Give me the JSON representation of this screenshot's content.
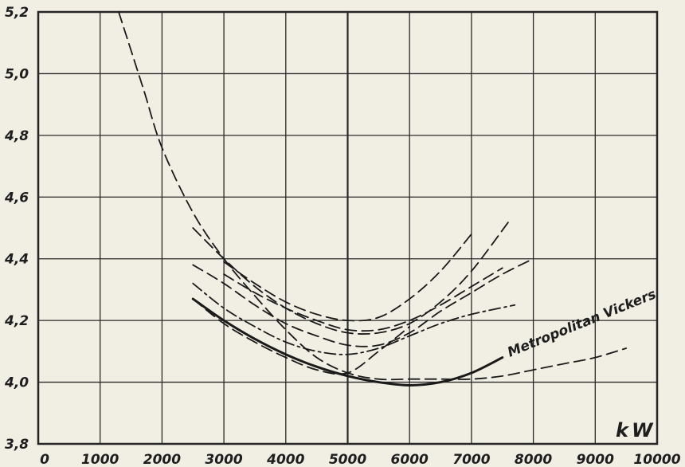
{
  "chart_data": {
    "type": "line",
    "title": "",
    "xlabel": "",
    "ylabel": "",
    "unit_label": "kW",
    "xlim": [
      0,
      10000
    ],
    "ylim": [
      3.8,
      5.2
    ],
    "x_ticks": [
      "0",
      "1000",
      "2000",
      "3000",
      "4000",
      "5000",
      "6000",
      "7000",
      "8000",
      "9000",
      "10000"
    ],
    "y_ticks": [
      "3,8",
      "4,0",
      "4,2",
      "4,4",
      "4,6",
      "4,8",
      "5,0",
      "5,2"
    ],
    "grid": true,
    "annotations": [
      {
        "text": "Metropolitan Vickers",
        "series": "Metropolitan Vickers"
      }
    ],
    "series": [
      {
        "name": "Metropolitan Vickers",
        "style": "solid",
        "x": [
          2500,
          3000,
          3500,
          4000,
          4500,
          5000,
          5500,
          6000,
          6500,
          7000,
          7500
        ],
        "y": [
          4.27,
          4.2,
          4.14,
          4.09,
          4.05,
          4.02,
          4.0,
          3.99,
          4.0,
          4.03,
          4.08
        ]
      },
      {
        "style": "dashed",
        "x": [
          1300,
          1700,
          2000,
          2500,
          3000,
          3500,
          4000,
          4500,
          5000,
          5500,
          6000,
          6500,
          7000,
          7500,
          8000,
          8500,
          9000,
          9500
        ],
        "y": [
          5.2,
          4.95,
          4.76,
          4.55,
          4.4,
          4.28,
          4.17,
          4.08,
          4.03,
          4.01,
          4.01,
          4.01,
          4.01,
          4.02,
          4.04,
          4.06,
          4.08,
          4.11
        ]
      },
      {
        "style": "dashed",
        "x": [
          3000,
          3500,
          4000,
          4500,
          5000,
          5500,
          6000,
          6500,
          7000
        ],
        "y": [
          4.39,
          4.32,
          4.26,
          4.22,
          4.2,
          4.21,
          4.27,
          4.36,
          4.48
        ]
      },
      {
        "style": "dashed",
        "x": [
          2500,
          3000,
          3500,
          4000,
          4500,
          5000,
          5500,
          6000,
          6500,
          7000,
          7600
        ],
        "y": [
          4.5,
          4.4,
          4.31,
          4.24,
          4.19,
          4.16,
          4.16,
          4.19,
          4.26,
          4.36,
          4.52
        ]
      },
      {
        "style": "dashed",
        "x": [
          2500,
          3000,
          3500,
          4000,
          4500,
          5000,
          5500,
          6000,
          6500,
          7000,
          7500,
          8000
        ],
        "y": [
          4.38,
          4.32,
          4.25,
          4.19,
          4.15,
          4.12,
          4.12,
          4.16,
          4.23,
          4.29,
          4.35,
          4.4
        ]
      },
      {
        "style": "dashed",
        "x": [
          3000,
          3500,
          4000,
          4500,
          5000,
          5500,
          6000,
          6500,
          7000,
          7500
        ],
        "y": [
          4.35,
          4.29,
          4.24,
          4.2,
          4.17,
          4.17,
          4.2,
          4.25,
          4.31,
          4.37
        ]
      },
      {
        "style": "dashdot",
        "x": [
          2500,
          3000,
          3500,
          4000,
          4500,
          5000,
          5500,
          6000,
          6500,
          7000,
          7700
        ],
        "y": [
          4.32,
          4.24,
          4.18,
          4.13,
          4.1,
          4.09,
          4.11,
          4.15,
          4.19,
          4.22,
          4.25
        ]
      },
      {
        "style": "dashed",
        "x": [
          2500,
          3000,
          3500,
          4000,
          4500,
          5000,
          5500,
          6000
        ],
        "y": [
          4.27,
          4.19,
          4.13,
          4.08,
          4.04,
          4.03,
          4.1,
          4.18
        ]
      }
    ]
  }
}
